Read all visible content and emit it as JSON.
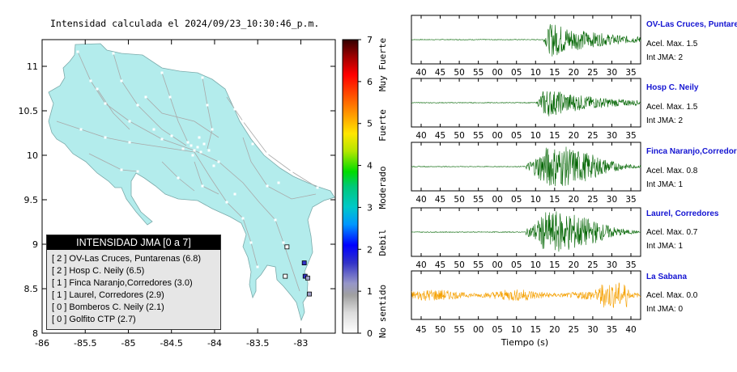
{
  "map": {
    "title": "Intensidad calculada el 2024/09/23_10:30:46_p.m.",
    "x_ticks": [
      "-86",
      "-85.5",
      "-85",
      "-84.5",
      "-84",
      "-83.5",
      "-83"
    ],
    "y_ticks": [
      "11",
      "10.5",
      "10",
      "9.5",
      "9",
      "8.5",
      "8"
    ],
    "xlim": [
      -86,
      -82.6
    ],
    "ylim": [
      8,
      11.3
    ]
  },
  "colorbar": {
    "ticks": [
      "0",
      "1",
      "2",
      "3",
      "4",
      "5",
      "6",
      "7"
    ],
    "categories": [
      "No sentido",
      "Debil",
      "Moderado",
      "Fuerte",
      "Muy Fuerte"
    ]
  },
  "legend": {
    "title": "INTENSIDAD JMA [0 a 7]",
    "items": [
      "[ 2 ]  OV-Las Cruces, Puntarenas (6.8)",
      "[ 2 ]  Hosp C. Neily (6.5)",
      "[ 1 ]  Finca Naranjo,Corredores (3.0)",
      "[ 1 ]  Laurel, Corredores (2.9)",
      "[ 0 ]  Bomberos C. Neily (2.1)",
      "[ 0 ]  Golfito CTP (2.7)"
    ]
  },
  "stations": [
    {
      "name": "OV-Las Cruces, Puntarenas",
      "accel": "Acel. Max. 1.5",
      "jma": "Int JMA: 2",
      "ticks": [
        "40",
        "45",
        "50",
        "55",
        "00",
        "05",
        "10",
        "15",
        "20",
        "25",
        "30",
        "35"
      ]
    },
    {
      "name": "Hosp C. Neily",
      "accel": "Acel. Max. 1.5",
      "jma": "Int JMA: 2",
      "ticks": [
        "40",
        "45",
        "50",
        "55",
        "00",
        "05",
        "10",
        "15",
        "20",
        "25",
        "30",
        "35"
      ]
    },
    {
      "name": "Finca Naranjo,Corredores",
      "accel": "Acel. Max. 0.8",
      "jma": "Int JMA: 1",
      "ticks": [
        "40",
        "45",
        "50",
        "55",
        "00",
        "05",
        "10",
        "15",
        "20",
        "25",
        "30",
        "35"
      ]
    },
    {
      "name": "Laurel, Corredores",
      "accel": "Acel. Max. 0.7",
      "jma": "Int JMA: 1",
      "ticks": [
        "40",
        "45",
        "50",
        "55",
        "00",
        "05",
        "10",
        "15",
        "20",
        "25",
        "30",
        "35"
      ]
    },
    {
      "name": "La Sabana",
      "accel": "Acel. Max. 0.0",
      "jma": "Int JMA: 0",
      "ticks": [
        "45",
        "50",
        "55",
        "00",
        "05",
        "10",
        "15",
        "20",
        "25",
        "30",
        "35",
        "40"
      ]
    }
  ],
  "xlabel": "Tiempo (s)",
  "colors": {
    "land": "#b3ecec",
    "wave": "#006400",
    "wave_noise": "#f5a000",
    "station_name": "#1414d2"
  },
  "chart_data": [
    {
      "type": "map",
      "title": "Intensidad calculada el 2024/09/23_10:30:46_p.m.",
      "xlim": [
        -86,
        -82.6
      ],
      "ylim": [
        8,
        11.3
      ],
      "stations": [
        {
          "name": "OV-Las Cruces, Puntarenas",
          "lon": -82.96,
          "lat": 8.79,
          "jma": 2,
          "value": 6.8
        },
        {
          "name": "Hosp C. Neily",
          "lon": -82.95,
          "lat": 8.64,
          "jma": 2,
          "value": 6.5
        },
        {
          "name": "Finca Naranjo,Corredores",
          "lon": -82.92,
          "lat": 8.62,
          "jma": 1,
          "value": 3.0
        },
        {
          "name": "Laurel, Corredores",
          "lon": -82.9,
          "lat": 8.44,
          "jma": 1,
          "value": 2.9
        },
        {
          "name": "Bomberos C. Neily",
          "lon": -83.16,
          "lat": 8.97,
          "jma": 0,
          "value": 2.1
        },
        {
          "name": "Golfito CTP",
          "lon": -83.18,
          "lat": 8.64,
          "jma": 0,
          "value": 2.7
        }
      ],
      "colorbar": {
        "min": 0,
        "max": 7
      }
    },
    {
      "type": "line",
      "series": [
        {
          "name": "OV-Las Cruces, Puntarenas",
          "pga": 1.5,
          "jma": 2
        },
        {
          "name": "Hosp C. Neily",
          "pga": 1.5,
          "jma": 2
        },
        {
          "name": "Finca Naranjo,Corredores",
          "pga": 0.8,
          "jma": 1
        },
        {
          "name": "Laurel, Corredores",
          "pga": 0.7,
          "jma": 1
        },
        {
          "name": "La Sabana",
          "pga": 0.0,
          "jma": 0
        }
      ],
      "xlabel": "Tiempo (s)"
    }
  ]
}
